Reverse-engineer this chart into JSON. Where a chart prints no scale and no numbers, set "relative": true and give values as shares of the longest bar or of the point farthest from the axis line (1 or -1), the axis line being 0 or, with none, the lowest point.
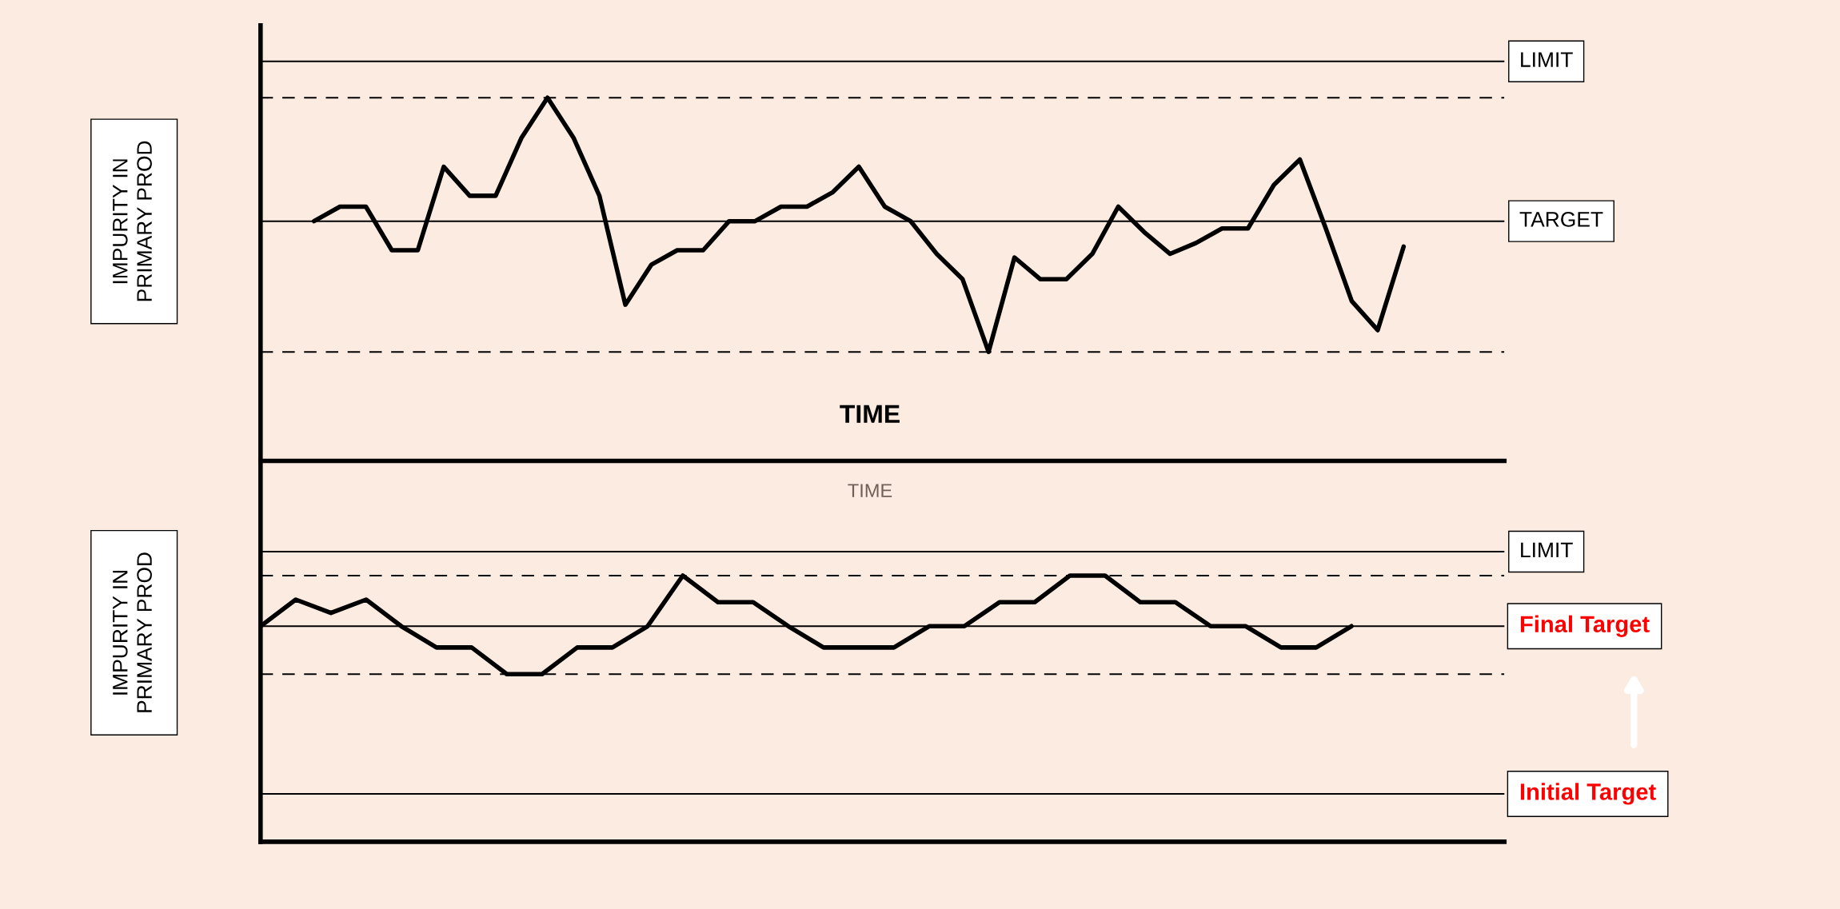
{
  "chart_data": [
    {
      "type": "line",
      "relative": true,
      "xlabel": "TIME",
      "ylabel": "IMPURITY IN\nPRIMARY PROD",
      "categories": [
        null,
        null,
        null,
        null,
        null,
        null,
        null,
        null,
        null,
        null,
        null,
        null,
        null,
        null,
        null,
        null,
        null,
        null,
        null,
        null,
        null,
        null,
        null,
        null,
        null,
        null,
        null,
        null,
        null,
        null,
        null,
        null,
        null,
        null,
        null,
        null,
        null,
        null,
        null,
        null,
        null,
        null,
        null
      ],
      "series": [
        {
          "color": "#000000",
          "values": [
            0.66,
            0.7,
            0.7,
            0.58,
            0.58,
            0.81,
            0.73,
            0.73,
            0.89,
            1.0,
            0.89,
            0.73,
            0.43,
            0.54,
            0.58,
            0.58,
            0.66,
            0.66,
            0.7,
            0.7,
            0.74,
            0.81,
            0.7,
            0.66,
            0.57,
            0.5,
            0.3,
            0.56,
            0.5,
            0.5,
            0.57,
            0.7,
            0.63,
            0.57,
            0.6,
            0.64,
            0.64,
            0.76,
            0.83,
            0.64,
            0.44,
            0.36,
            0.59
          ]
        }
      ],
      "ref_lines": [
        {
          "axis": "y",
          "value": 1.1,
          "label": "LIMIT",
          "color": "#000000",
          "line_style": "solid"
        },
        {
          "axis": "y",
          "value": 1.0,
          "color": "#000000",
          "line_style": "dashed"
        },
        {
          "axis": "y",
          "value": 0.66,
          "label": "TARGET",
          "color": "#000000",
          "line_style": "solid"
        },
        {
          "axis": "y",
          "value": 0.3,
          "color": "#000000",
          "line_style": "dashed"
        }
      ]
    },
    {
      "type": "line",
      "relative": true,
      "ylabel": "IMPURITY IN\nPRIMARY PROD",
      "annotations": [
        "TIME"
      ],
      "categories": [
        null,
        null,
        null,
        null,
        null,
        null,
        null,
        null,
        null,
        null,
        null,
        null,
        null,
        null,
        null,
        null,
        null,
        null,
        null,
        null,
        null,
        null,
        null,
        null,
        null,
        null,
        null,
        null,
        null,
        null,
        null,
        null
      ],
      "series": [
        {
          "color": "#000000",
          "values": [
            0.81,
            0.91,
            0.86,
            0.91,
            0.81,
            0.73,
            0.73,
            0.63,
            0.63,
            0.73,
            0.73,
            0.81,
            1.0,
            0.9,
            0.9,
            0.81,
            0.73,
            0.73,
            0.73,
            0.81,
            0.81,
            0.9,
            0.9,
            1.0,
            1.0,
            0.9,
            0.9,
            0.81,
            0.81,
            0.73,
            0.73,
            0.81
          ]
        }
      ],
      "ref_lines": [
        {
          "axis": "y",
          "value": 1.09,
          "label": "LIMIT",
          "color": "#000000",
          "line_style": "solid"
        },
        {
          "axis": "y",
          "value": 1.0,
          "color": "#000000",
          "line_style": "dashed"
        },
        {
          "axis": "y",
          "value": 0.81,
          "label": "Final Target",
          "color": "#000000",
          "line_style": "solid"
        },
        {
          "axis": "y",
          "value": 0.63,
          "color": "#000000",
          "line_style": "dashed"
        },
        {
          "axis": "y",
          "value": 0.18,
          "label": "Initial Target",
          "color": "#000000",
          "line_style": "solid"
        }
      ]
    }
  ]
}
